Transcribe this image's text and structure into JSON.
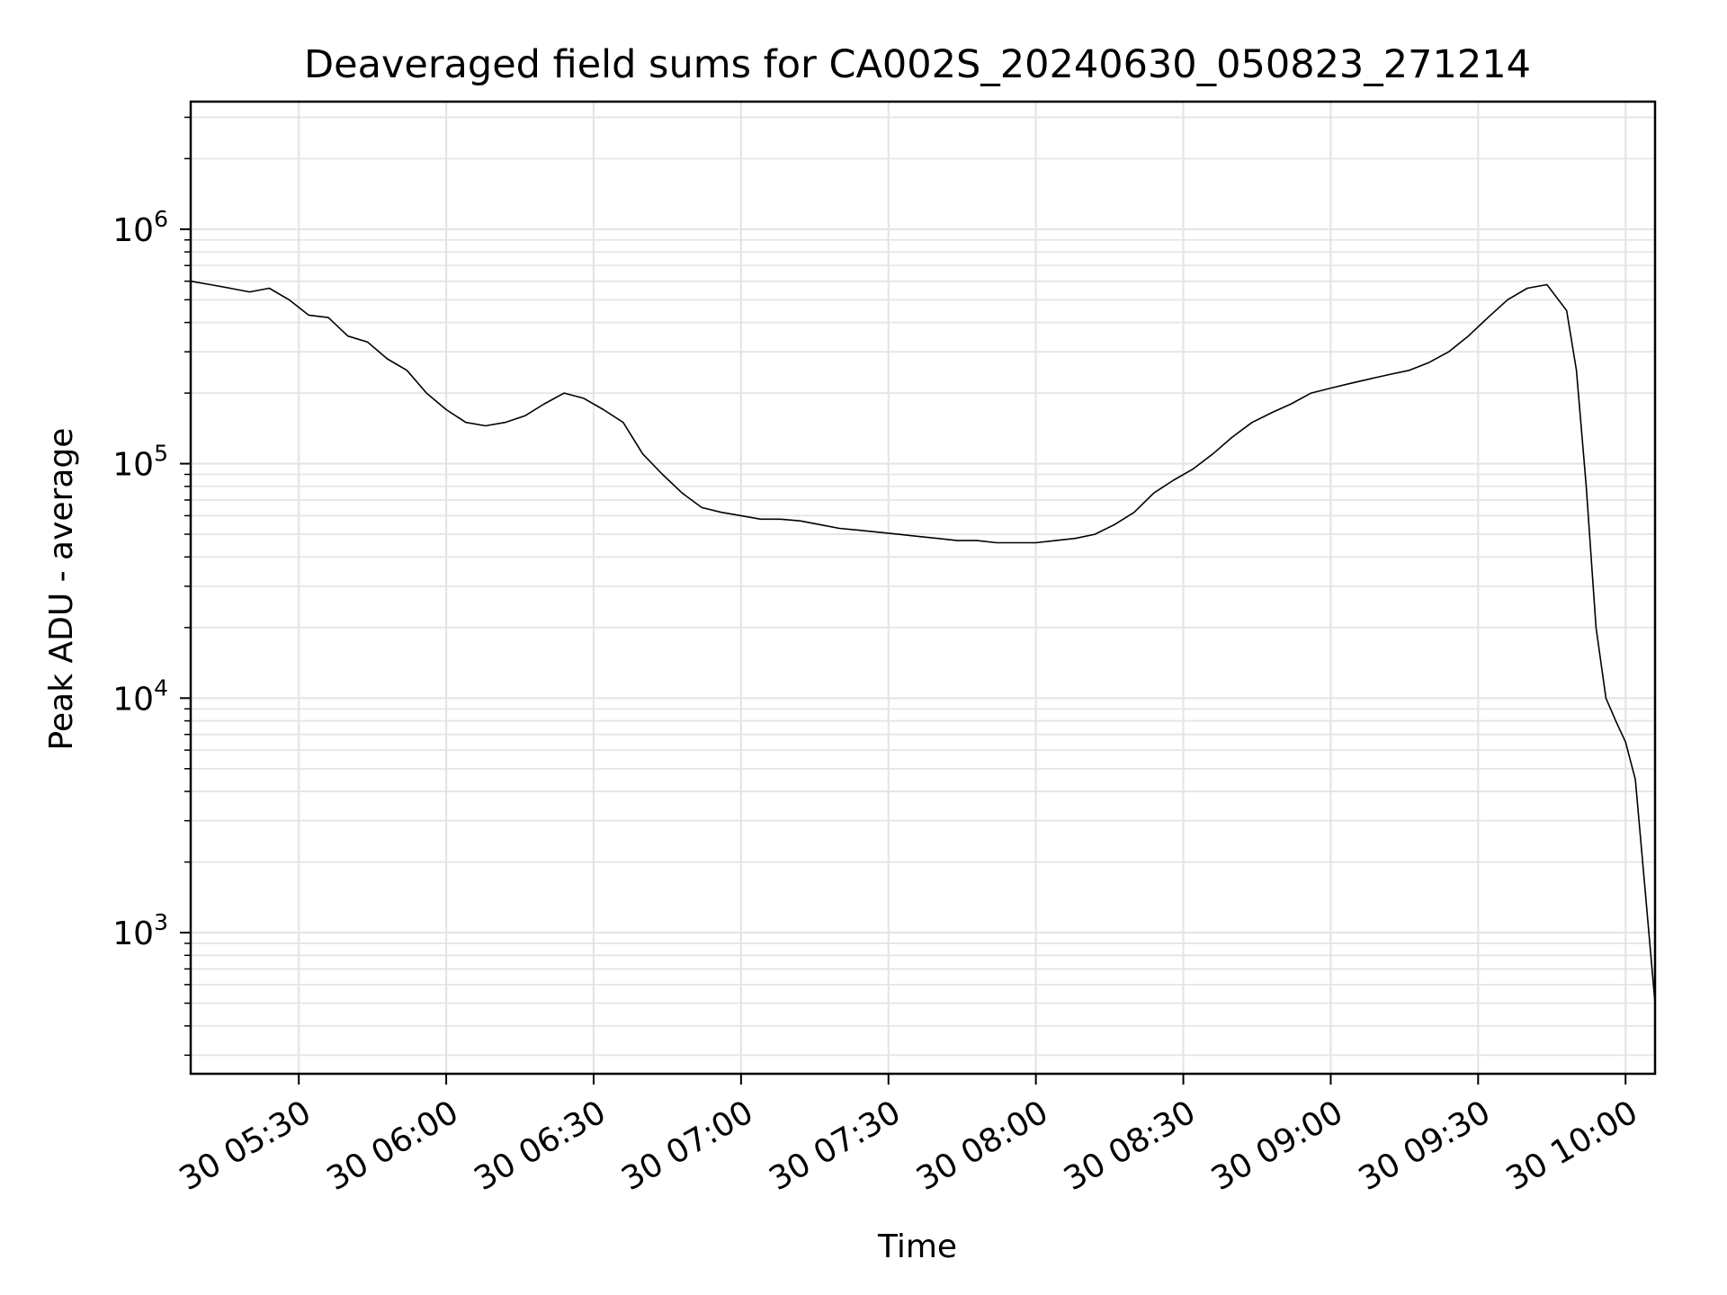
{
  "chart_data": {
    "type": "line",
    "title": "Deaveraged field sums for CA002S_20240630_050823_271214",
    "xlabel": "Time",
    "ylabel": "Peak ADU - average",
    "xscale": "time",
    "yscale": "log",
    "xlim": [
      "2024-06-30 05:08",
      "2024-06-30 10:06"
    ],
    "ylim": [
      250,
      3500000
    ],
    "grid": true,
    "line_color": "#000000",
    "x_ticks": [
      {
        "value": "2024-06-30 05:30",
        "label": "30 05:30"
      },
      {
        "value": "2024-06-30 06:00",
        "label": "30 06:00"
      },
      {
        "value": "2024-06-30 06:30",
        "label": "30 06:30"
      },
      {
        "value": "2024-06-30 07:00",
        "label": "30 07:00"
      },
      {
        "value": "2024-06-30 07:30",
        "label": "30 07:30"
      },
      {
        "value": "2024-06-30 08:00",
        "label": "30 08:00"
      },
      {
        "value": "2024-06-30 08:30",
        "label": "30 08:30"
      },
      {
        "value": "2024-06-30 09:00",
        "label": "30 09:00"
      },
      {
        "value": "2024-06-30 09:30",
        "label": "30 09:30"
      },
      {
        "value": "2024-06-30 10:00",
        "label": "30 10:00"
      }
    ],
    "y_ticks": [
      {
        "value": 1000,
        "base": "10",
        "exp": "3"
      },
      {
        "value": 10000,
        "base": "10",
        "exp": "4"
      },
      {
        "value": 100000,
        "base": "10",
        "exp": "5"
      },
      {
        "value": 1000000,
        "base": "10",
        "exp": "6"
      }
    ],
    "series": [
      {
        "x": [
          "2024-06-30 05:08",
          "2024-06-30 05:12",
          "2024-06-30 05:16",
          "2024-06-30 05:20",
          "2024-06-30 05:24",
          "2024-06-30 05:28",
          "2024-06-30 05:32",
          "2024-06-30 05:36",
          "2024-06-30 05:40",
          "2024-06-30 05:44",
          "2024-06-30 05:48",
          "2024-06-30 05:52",
          "2024-06-30 05:56",
          "2024-06-30 06:00",
          "2024-06-30 06:04",
          "2024-06-30 06:08",
          "2024-06-30 06:12",
          "2024-06-30 06:16",
          "2024-06-30 06:20",
          "2024-06-30 06:24",
          "2024-06-30 06:28",
          "2024-06-30 06:32",
          "2024-06-30 06:36",
          "2024-06-30 06:40",
          "2024-06-30 06:44",
          "2024-06-30 06:48",
          "2024-06-30 06:52",
          "2024-06-30 06:56",
          "2024-06-30 07:00",
          "2024-06-30 07:04",
          "2024-06-30 07:08",
          "2024-06-30 07:12",
          "2024-06-30 07:16",
          "2024-06-30 07:20",
          "2024-06-30 07:24",
          "2024-06-30 07:28",
          "2024-06-30 07:32",
          "2024-06-30 07:36",
          "2024-06-30 07:40",
          "2024-06-30 07:44",
          "2024-06-30 07:48",
          "2024-06-30 07:52",
          "2024-06-30 07:56",
          "2024-06-30 08:00",
          "2024-06-30 08:04",
          "2024-06-30 08:08",
          "2024-06-30 08:12",
          "2024-06-30 08:16",
          "2024-06-30 08:20",
          "2024-06-30 08:24",
          "2024-06-30 08:28",
          "2024-06-30 08:32",
          "2024-06-30 08:36",
          "2024-06-30 08:40",
          "2024-06-30 08:44",
          "2024-06-30 08:48",
          "2024-06-30 08:52",
          "2024-06-30 08:56",
          "2024-06-30 09:00",
          "2024-06-30 09:04",
          "2024-06-30 09:08",
          "2024-06-30 09:12",
          "2024-06-30 09:16",
          "2024-06-30 09:20",
          "2024-06-30 09:24",
          "2024-06-30 09:28",
          "2024-06-30 09:32",
          "2024-06-30 09:36",
          "2024-06-30 09:40",
          "2024-06-30 09:44",
          "2024-06-30 09:48",
          "2024-06-30 09:50",
          "2024-06-30 09:52",
          "2024-06-30 09:54",
          "2024-06-30 09:56",
          "2024-06-30 09:58",
          "2024-06-30 10:00",
          "2024-06-30 10:02",
          "2024-06-30 10:04",
          "2024-06-30 10:06"
        ],
        "y": [
          600000,
          580000,
          560000,
          540000,
          560000,
          500000,
          430000,
          420000,
          350000,
          330000,
          280000,
          250000,
          200000,
          170000,
          150000,
          145000,
          150000,
          160000,
          180000,
          200000,
          190000,
          170000,
          150000,
          110000,
          90000,
          75000,
          65000,
          62000,
          60000,
          58000,
          58000,
          57000,
          55000,
          53000,
          52000,
          51000,
          50000,
          49000,
          48000,
          47000,
          47000,
          46000,
          46000,
          46000,
          47000,
          48000,
          50000,
          55000,
          62000,
          75000,
          85000,
          95000,
          110000,
          130000,
          150000,
          165000,
          180000,
          200000,
          210000,
          220000,
          230000,
          240000,
          250000,
          270000,
          300000,
          350000,
          420000,
          500000,
          560000,
          580000,
          450000,
          250000,
          80000,
          20000,
          10000,
          8000,
          6500,
          4500,
          1500,
          500
        ]
      }
    ]
  }
}
